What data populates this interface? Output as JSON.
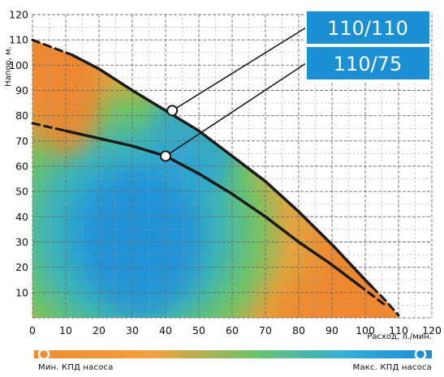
{
  "chart_data": {
    "type": "line",
    "xlabel": "Расход, л./мин.",
    "ylabel": "Напор, м.",
    "xlim": [
      0,
      120
    ],
    "ylim": [
      0,
      120
    ],
    "x_ticks": [
      0,
      10,
      20,
      30,
      40,
      50,
      60,
      70,
      80,
      90,
      100,
      110,
      120
    ],
    "y_ticks": [
      10,
      20,
      30,
      40,
      50,
      60,
      70,
      80,
      90,
      100,
      110,
      120
    ],
    "grid": true,
    "background": "efficiency color map (orange = min, green, blue = max)",
    "series": [
      {
        "name": "110/110",
        "color": "#1a1a1a",
        "x": [
          0,
          12,
          20,
          30,
          40,
          50,
          60,
          70,
          80,
          90,
          100,
          106,
          110
        ],
        "y": [
          110,
          104,
          98.5,
          90,
          82,
          74,
          64,
          54,
          42,
          29,
          15,
          7,
          1
        ],
        "dashed_start_x": 12,
        "dashed_end_x": 102,
        "marker": {
          "x": 42,
          "y": 82
        }
      },
      {
        "name": "110/75",
        "color": "#1a1a1a",
        "x": [
          0,
          10,
          20,
          30,
          40,
          50,
          60,
          70,
          80,
          90,
          100,
          106
        ],
        "y": [
          77,
          74,
          71,
          68,
          64,
          57,
          49,
          40,
          30,
          21,
          11,
          5
        ],
        "dashed_start_x": 10,
        "dashed_end_x": 98,
        "marker": {
          "x": 40,
          "y": 64
        }
      }
    ],
    "legend": {
      "min_label": "Мин. КПД насоса",
      "max_label": "Макс. КПД насоса",
      "colors": [
        "#ef8a2e",
        "#f2a23c",
        "#6dc26a",
        "#33b0d4",
        "#1a8cd4"
      ]
    },
    "callout_color": "#1a8fd4"
  }
}
